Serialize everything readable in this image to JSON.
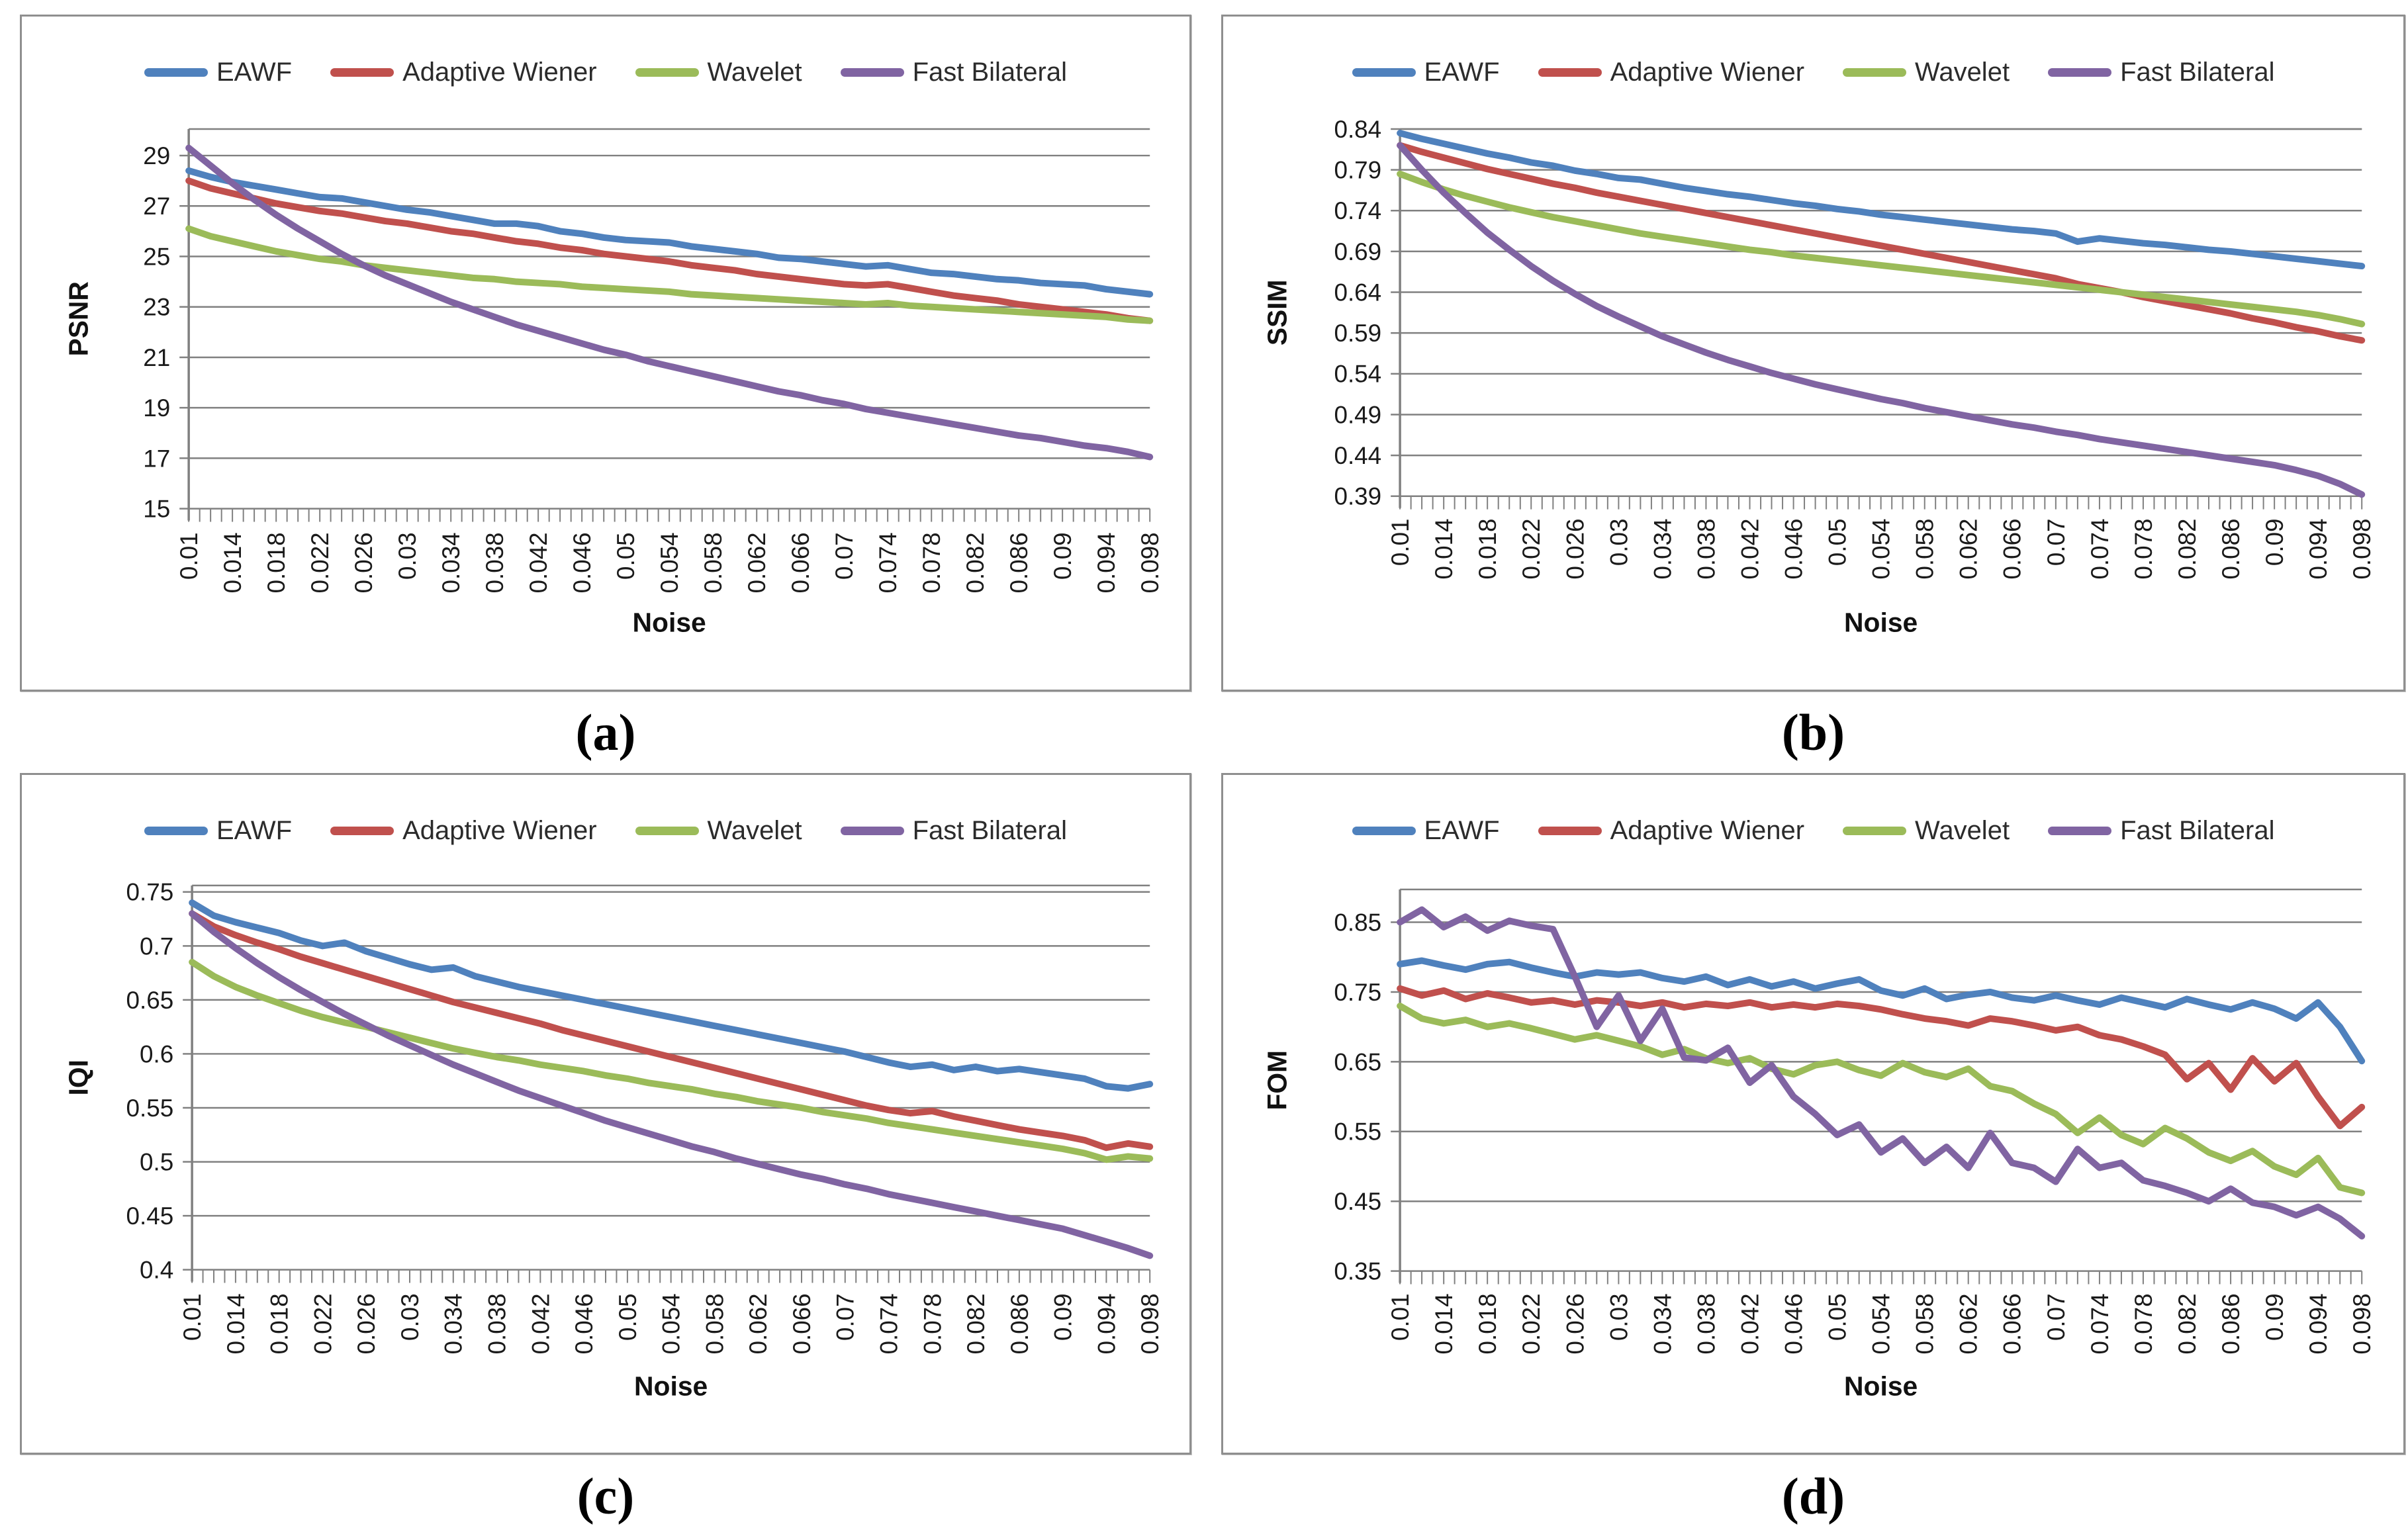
{
  "figure": {
    "background": "#ffffff",
    "grid_color": "#808080",
    "axis_color": "#808080",
    "text_color": "#1a1a1a"
  },
  "legend_labels": [
    "EAWF",
    "Adaptive Wiener",
    "Wavelet",
    "Fast Bilateral"
  ],
  "series_colors": {
    "EAWF": "#4F81BD",
    "Adaptive Wiener": "#C0504D",
    "Wavelet": "#9BBB59",
    "Fast Bilateral": "#8064A2"
  },
  "chart_data": [
    {
      "id": "a",
      "caption": "(a)",
      "type": "line",
      "title": "",
      "xlabel": "Noise",
      "ylabel": "PSNR",
      "ylim": [
        15,
        29
      ],
      "grid": true,
      "legend_position": "top",
      "yticks": [
        "29",
        "27",
        "25",
        "23",
        "21",
        "19",
        "17",
        "15"
      ],
      "x_start": 0.01,
      "x_step": 0.002,
      "x_count": 45,
      "categories": [
        "0.01",
        "0.014",
        "0.018",
        "0.022",
        "0.026",
        "0.03",
        "0.034",
        "0.038",
        "0.042",
        "0.046",
        "0.05",
        "0.054",
        "0.058",
        "0.062",
        "0.066",
        "0.07",
        "0.074",
        "0.078",
        "0.082",
        "0.086",
        "0.09",
        "0.094",
        "0.098"
      ],
      "series": [
        {
          "name": "EAWF",
          "color": "#4F81BD",
          "values": [
            28.4,
            28.15,
            27.95,
            27.8,
            27.65,
            27.5,
            27.35,
            27.3,
            27.15,
            27.0,
            26.85,
            26.75,
            26.6,
            26.45,
            26.3,
            26.3,
            26.2,
            26.0,
            25.9,
            25.75,
            25.65,
            25.6,
            25.55,
            25.4,
            25.3,
            25.2,
            25.1,
            24.95,
            24.9,
            24.8,
            24.7,
            24.6,
            24.65,
            24.5,
            24.35,
            24.3,
            24.2,
            24.1,
            24.05,
            23.95,
            23.9,
            23.85,
            23.7,
            23.6,
            23.5
          ]
        },
        {
          "name": "Adaptive Wiener",
          "color": "#C0504D",
          "values": [
            28.0,
            27.7,
            27.5,
            27.3,
            27.1,
            26.95,
            26.8,
            26.7,
            26.55,
            26.4,
            26.3,
            26.15,
            26.0,
            25.9,
            25.75,
            25.6,
            25.5,
            25.35,
            25.25,
            25.1,
            25.0,
            24.9,
            24.8,
            24.65,
            24.55,
            24.45,
            24.3,
            24.2,
            24.1,
            24.0,
            23.9,
            23.85,
            23.9,
            23.75,
            23.6,
            23.45,
            23.35,
            23.25,
            23.1,
            23.0,
            22.9,
            22.8,
            22.7,
            22.55,
            22.45
          ]
        },
        {
          "name": "Wavelet",
          "color": "#9BBB59",
          "values": [
            26.1,
            25.8,
            25.6,
            25.4,
            25.2,
            25.05,
            24.9,
            24.8,
            24.65,
            24.55,
            24.45,
            24.35,
            24.25,
            24.15,
            24.1,
            24.0,
            23.95,
            23.9,
            23.8,
            23.75,
            23.7,
            23.65,
            23.6,
            23.5,
            23.45,
            23.4,
            23.35,
            23.3,
            23.25,
            23.2,
            23.15,
            23.1,
            23.15,
            23.05,
            23.0,
            22.95,
            22.9,
            22.85,
            22.8,
            22.75,
            22.7,
            22.65,
            22.6,
            22.5,
            22.45
          ]
        },
        {
          "name": "Fast Bilateral",
          "color": "#8064A2",
          "values": [
            29.3,
            28.6,
            27.9,
            27.25,
            26.65,
            26.1,
            25.6,
            25.1,
            24.65,
            24.25,
            23.9,
            23.55,
            23.2,
            22.9,
            22.6,
            22.3,
            22.05,
            21.8,
            21.55,
            21.3,
            21.1,
            20.85,
            20.65,
            20.45,
            20.25,
            20.05,
            19.85,
            19.65,
            19.5,
            19.3,
            19.15,
            18.95,
            18.8,
            18.65,
            18.5,
            18.35,
            18.2,
            18.05,
            17.9,
            17.8,
            17.65,
            17.5,
            17.4,
            17.25,
            17.05
          ]
        }
      ]
    },
    {
      "id": "b",
      "caption": "(b)",
      "type": "line",
      "title": "",
      "xlabel": "Noise",
      "ylabel": "SSIM",
      "ylim": [
        0.39,
        0.84
      ],
      "grid": true,
      "legend_position": "top",
      "yticks": [
        "0.84",
        "0.79",
        "0.74",
        "0.69",
        "0.64",
        "0.59",
        "0.54",
        "0.49",
        "0.44",
        "0.39"
      ],
      "x_start": 0.01,
      "x_step": 0.002,
      "x_count": 45,
      "categories": [
        "0.01",
        "0.014",
        "0.018",
        "0.022",
        "0.026",
        "0.03",
        "0.034",
        "0.038",
        "0.042",
        "0.046",
        "0.05",
        "0.054",
        "0.058",
        "0.062",
        "0.066",
        "0.07",
        "0.074",
        "0.078",
        "0.082",
        "0.086",
        "0.09",
        "0.094",
        "0.098"
      ],
      "series": [
        {
          "name": "EAWF",
          "color": "#4F81BD",
          "values": [
            0.835,
            0.828,
            0.822,
            0.816,
            0.81,
            0.805,
            0.799,
            0.795,
            0.789,
            0.785,
            0.78,
            0.778,
            0.773,
            0.768,
            0.764,
            0.76,
            0.757,
            0.753,
            0.749,
            0.746,
            0.742,
            0.739,
            0.735,
            0.732,
            0.729,
            0.726,
            0.723,
            0.72,
            0.717,
            0.715,
            0.712,
            0.702,
            0.706,
            0.703,
            0.7,
            0.698,
            0.695,
            0.692,
            0.69,
            0.687,
            0.684,
            0.681,
            0.678,
            0.675,
            0.672
          ]
        },
        {
          "name": "Adaptive Wiener",
          "color": "#C0504D",
          "values": [
            0.82,
            0.812,
            0.805,
            0.798,
            0.791,
            0.785,
            0.779,
            0.773,
            0.768,
            0.762,
            0.757,
            0.752,
            0.747,
            0.742,
            0.737,
            0.732,
            0.727,
            0.722,
            0.717,
            0.712,
            0.707,
            0.702,
            0.697,
            0.692,
            0.687,
            0.682,
            0.677,
            0.672,
            0.667,
            0.662,
            0.657,
            0.65,
            0.645,
            0.64,
            0.634,
            0.629,
            0.624,
            0.619,
            0.614,
            0.608,
            0.603,
            0.597,
            0.592,
            0.586,
            0.581
          ]
        },
        {
          "name": "Wavelet",
          "color": "#9BBB59",
          "values": [
            0.785,
            0.775,
            0.766,
            0.758,
            0.751,
            0.744,
            0.738,
            0.732,
            0.727,
            0.722,
            0.717,
            0.712,
            0.708,
            0.704,
            0.7,
            0.696,
            0.692,
            0.689,
            0.685,
            0.682,
            0.679,
            0.676,
            0.673,
            0.67,
            0.667,
            0.664,
            0.661,
            0.658,
            0.655,
            0.652,
            0.649,
            0.646,
            0.643,
            0.64,
            0.637,
            0.634,
            0.631,
            0.628,
            0.625,
            0.622,
            0.619,
            0.616,
            0.612,
            0.607,
            0.601
          ]
        },
        {
          "name": "Fast Bilateral",
          "color": "#8064A2",
          "values": [
            0.82,
            0.79,
            0.762,
            0.737,
            0.713,
            0.692,
            0.672,
            0.654,
            0.638,
            0.623,
            0.61,
            0.598,
            0.586,
            0.576,
            0.566,
            0.557,
            0.549,
            0.541,
            0.534,
            0.527,
            0.521,
            0.515,
            0.509,
            0.504,
            0.498,
            0.493,
            0.488,
            0.483,
            0.478,
            0.474,
            0.469,
            0.465,
            0.46,
            0.456,
            0.452,
            0.448,
            0.444,
            0.44,
            0.436,
            0.432,
            0.428,
            0.422,
            0.415,
            0.405,
            0.392
          ]
        }
      ]
    },
    {
      "id": "c",
      "caption": "(c)",
      "type": "line",
      "title": "",
      "xlabel": "Noise",
      "ylabel": "IQI",
      "ylim": [
        0.4,
        0.75
      ],
      "grid": true,
      "legend_position": "top",
      "yticks": [
        "0.75",
        "0.7",
        "0.65",
        "0.6",
        "0.55",
        "0.5",
        "0.45",
        "0.4"
      ],
      "x_start": 0.01,
      "x_step": 0.002,
      "x_count": 45,
      "categories": [
        "0.01",
        "0.014",
        "0.018",
        "0.022",
        "0.026",
        "0.03",
        "0.034",
        "0.038",
        "0.042",
        "0.046",
        "0.05",
        "0.054",
        "0.058",
        "0.062",
        "0.066",
        "0.07",
        "0.074",
        "0.078",
        "0.082",
        "0.086",
        "0.09",
        "0.094",
        "0.098"
      ],
      "series": [
        {
          "name": "EAWF",
          "color": "#4F81BD",
          "values": [
            0.74,
            0.728,
            0.722,
            0.717,
            0.712,
            0.705,
            0.7,
            0.703,
            0.695,
            0.689,
            0.683,
            0.678,
            0.68,
            0.672,
            0.667,
            0.662,
            0.658,
            0.654,
            0.65,
            0.646,
            0.642,
            0.638,
            0.634,
            0.63,
            0.626,
            0.622,
            0.618,
            0.614,
            0.61,
            0.606,
            0.602,
            0.597,
            0.592,
            0.588,
            0.59,
            0.585,
            0.588,
            0.584,
            0.586,
            0.583,
            0.58,
            0.577,
            0.57,
            0.568,
            0.572
          ]
        },
        {
          "name": "Adaptive Wiener",
          "color": "#C0504D",
          "values": [
            0.73,
            0.718,
            0.71,
            0.703,
            0.697,
            0.69,
            0.684,
            0.678,
            0.672,
            0.666,
            0.66,
            0.654,
            0.648,
            0.643,
            0.638,
            0.633,
            0.628,
            0.622,
            0.617,
            0.612,
            0.607,
            0.602,
            0.597,
            0.592,
            0.587,
            0.582,
            0.577,
            0.572,
            0.567,
            0.562,
            0.557,
            0.552,
            0.548,
            0.545,
            0.547,
            0.542,
            0.538,
            0.534,
            0.53,
            0.527,
            0.524,
            0.52,
            0.513,
            0.517,
            0.514
          ]
        },
        {
          "name": "Wavelet",
          "color": "#9BBB59",
          "values": [
            0.685,
            0.672,
            0.662,
            0.654,
            0.647,
            0.64,
            0.634,
            0.629,
            0.625,
            0.62,
            0.615,
            0.61,
            0.605,
            0.601,
            0.597,
            0.594,
            0.59,
            0.587,
            0.584,
            0.58,
            0.577,
            0.573,
            0.57,
            0.567,
            0.563,
            0.56,
            0.556,
            0.553,
            0.55,
            0.546,
            0.543,
            0.54,
            0.536,
            0.533,
            0.53,
            0.527,
            0.524,
            0.521,
            0.518,
            0.515,
            0.512,
            0.508,
            0.502,
            0.505,
            0.503
          ]
        },
        {
          "name": "Fast Bilateral",
          "color": "#8064A2",
          "values": [
            0.73,
            0.713,
            0.698,
            0.684,
            0.671,
            0.659,
            0.648,
            0.637,
            0.627,
            0.617,
            0.608,
            0.599,
            0.59,
            0.582,
            0.574,
            0.566,
            0.559,
            0.552,
            0.545,
            0.538,
            0.532,
            0.526,
            0.52,
            0.514,
            0.509,
            0.503,
            0.498,
            0.493,
            0.488,
            0.484,
            0.479,
            0.475,
            0.47,
            0.466,
            0.462,
            0.458,
            0.454,
            0.45,
            0.446,
            0.442,
            0.438,
            0.432,
            0.426,
            0.42,
            0.413
          ]
        }
      ]
    },
    {
      "id": "d",
      "caption": "(d)",
      "type": "line",
      "title": "",
      "xlabel": "Noise",
      "ylabel": "FOM",
      "ylim": [
        0.35,
        0.85
      ],
      "grid": true,
      "legend_position": "top",
      "yticks": [
        "0.85",
        "0.75",
        "0.65",
        "0.55",
        "0.45",
        "0.35"
      ],
      "x_start": 0.01,
      "x_step": 0.002,
      "x_count": 45,
      "categories": [
        "0.01",
        "0.014",
        "0.018",
        "0.022",
        "0.026",
        "0.03",
        "0.034",
        "0.038",
        "0.042",
        "0.046",
        "0.05",
        "0.054",
        "0.058",
        "0.062",
        "0.066",
        "0.07",
        "0.074",
        "0.078",
        "0.082",
        "0.086",
        "0.09",
        "0.094",
        "0.098"
      ],
      "series": [
        {
          "name": "EAWF",
          "color": "#4F81BD",
          "values": [
            0.79,
            0.795,
            0.788,
            0.782,
            0.79,
            0.793,
            0.785,
            0.778,
            0.772,
            0.778,
            0.775,
            0.778,
            0.77,
            0.765,
            0.772,
            0.76,
            0.768,
            0.758,
            0.765,
            0.755,
            0.762,
            0.768,
            0.752,
            0.745,
            0.755,
            0.74,
            0.746,
            0.75,
            0.742,
            0.738,
            0.745,
            0.738,
            0.732,
            0.742,
            0.735,
            0.728,
            0.74,
            0.732,
            0.725,
            0.735,
            0.726,
            0.712,
            0.735,
            0.7,
            0.651
          ]
        },
        {
          "name": "Adaptive Wiener",
          "color": "#C0504D",
          "values": [
            0.755,
            0.745,
            0.752,
            0.74,
            0.748,
            0.742,
            0.735,
            0.738,
            0.732,
            0.738,
            0.735,
            0.73,
            0.735,
            0.728,
            0.733,
            0.73,
            0.735,
            0.728,
            0.732,
            0.728,
            0.733,
            0.73,
            0.725,
            0.718,
            0.712,
            0.708,
            0.702,
            0.712,
            0.708,
            0.702,
            0.695,
            0.7,
            0.688,
            0.682,
            0.672,
            0.66,
            0.625,
            0.648,
            0.61,
            0.655,
            0.622,
            0.648,
            0.6,
            0.558,
            0.585
          ]
        },
        {
          "name": "Wavelet",
          "color": "#9BBB59",
          "values": [
            0.73,
            0.712,
            0.705,
            0.71,
            0.7,
            0.705,
            0.698,
            0.69,
            0.682,
            0.688,
            0.68,
            0.672,
            0.66,
            0.668,
            0.655,
            0.648,
            0.655,
            0.64,
            0.632,
            0.645,
            0.65,
            0.638,
            0.63,
            0.648,
            0.635,
            0.628,
            0.64,
            0.615,
            0.608,
            0.59,
            0.575,
            0.548,
            0.57,
            0.545,
            0.532,
            0.555,
            0.54,
            0.52,
            0.508,
            0.522,
            0.5,
            0.488,
            0.512,
            0.47,
            0.462
          ]
        },
        {
          "name": "Fast Bilateral",
          "color": "#8064A2",
          "values": [
            0.85,
            0.868,
            0.843,
            0.858,
            0.838,
            0.852,
            0.845,
            0.84,
            0.772,
            0.7,
            0.745,
            0.68,
            0.726,
            0.656,
            0.652,
            0.67,
            0.62,
            0.645,
            0.6,
            0.575,
            0.545,
            0.56,
            0.52,
            0.54,
            0.505,
            0.528,
            0.498,
            0.548,
            0.505,
            0.498,
            0.478,
            0.525,
            0.498,
            0.505,
            0.48,
            0.472,
            0.462,
            0.45,
            0.468,
            0.448,
            0.442,
            0.43,
            0.442,
            0.425,
            0.4
          ]
        }
      ]
    }
  ]
}
